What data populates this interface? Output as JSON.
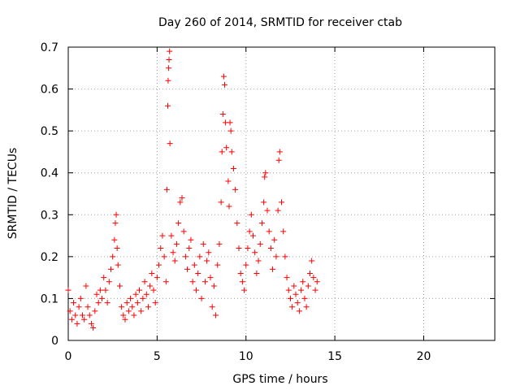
{
  "chart_data": {
    "type": "scatter",
    "title": "Day 260 of 2014, SRMTID for receiver ctab",
    "xlabel": "GPS time / hours",
    "ylabel": "SRMTID / TECUs",
    "xlim": [
      0,
      24
    ],
    "ylim": [
      0,
      0.7
    ],
    "xticks": [
      0,
      5,
      10,
      15,
      20
    ],
    "yticks": [
      0,
      0.1,
      0.2,
      0.3,
      0.4,
      0.5,
      0.6,
      0.7
    ],
    "xtick_labels": [
      "0",
      "5",
      "10",
      "15",
      "20"
    ],
    "ytick_labels": [
      "0",
      "0.1",
      "0.2",
      "0.3",
      "0.4",
      "0.5",
      "0.6",
      "0.7"
    ],
    "grid": true,
    "marker": "+",
    "series": [
      {
        "name": "ctab",
        "color": "#ff0000",
        "points": [
          [
            0.0,
            0.12
          ],
          [
            0.1,
            0.07
          ],
          [
            0.2,
            0.05
          ],
          [
            0.3,
            0.09
          ],
          [
            0.4,
            0.06
          ],
          [
            0.5,
            0.04
          ],
          [
            0.6,
            0.08
          ],
          [
            0.7,
            0.1
          ],
          [
            0.8,
            0.06
          ],
          [
            0.9,
            0.05
          ],
          [
            1.0,
            0.13
          ],
          [
            1.1,
            0.08
          ],
          [
            1.2,
            0.06
          ],
          [
            1.3,
            0.04
          ],
          [
            1.4,
            0.03
          ],
          [
            1.5,
            0.07
          ],
          [
            1.6,
            0.11
          ],
          [
            1.7,
            0.09
          ],
          [
            1.8,
            0.12
          ],
          [
            1.9,
            0.1
          ],
          [
            2.0,
            0.15
          ],
          [
            2.1,
            0.12
          ],
          [
            2.2,
            0.09
          ],
          [
            2.3,
            0.14
          ],
          [
            2.4,
            0.17
          ],
          [
            2.5,
            0.2
          ],
          [
            2.6,
            0.24
          ],
          [
            2.65,
            0.28
          ],
          [
            2.7,
            0.3
          ],
          [
            2.75,
            0.22
          ],
          [
            2.8,
            0.18
          ],
          [
            2.9,
            0.13
          ],
          [
            3.0,
            0.08
          ],
          [
            3.1,
            0.06
          ],
          [
            3.2,
            0.05
          ],
          [
            3.3,
            0.09
          ],
          [
            3.4,
            0.07
          ],
          [
            3.5,
            0.1
          ],
          [
            3.6,
            0.08
          ],
          [
            3.7,
            0.06
          ],
          [
            3.8,
            0.11
          ],
          [
            3.9,
            0.09
          ],
          [
            4.0,
            0.12
          ],
          [
            4.1,
            0.07
          ],
          [
            4.2,
            0.1
          ],
          [
            4.3,
            0.14
          ],
          [
            4.4,
            0.11
          ],
          [
            4.5,
            0.08
          ],
          [
            4.6,
            0.13
          ],
          [
            4.7,
            0.16
          ],
          [
            4.8,
            0.12
          ],
          [
            4.9,
            0.09
          ],
          [
            5.0,
            0.15
          ],
          [
            5.1,
            0.18
          ],
          [
            5.2,
            0.22
          ],
          [
            5.3,
            0.25
          ],
          [
            5.4,
            0.2
          ],
          [
            5.5,
            0.14
          ],
          [
            5.55,
            0.36
          ],
          [
            5.6,
            0.56
          ],
          [
            5.62,
            0.62
          ],
          [
            5.65,
            0.65
          ],
          [
            5.67,
            0.67
          ],
          [
            5.7,
            0.69
          ],
          [
            5.72,
            0.47
          ],
          [
            5.8,
            0.25
          ],
          [
            5.9,
            0.21
          ],
          [
            6.0,
            0.19
          ],
          [
            6.1,
            0.23
          ],
          [
            6.2,
            0.28
          ],
          [
            6.3,
            0.33
          ],
          [
            6.4,
            0.34
          ],
          [
            6.5,
            0.26
          ],
          [
            6.6,
            0.2
          ],
          [
            6.7,
            0.17
          ],
          [
            6.8,
            0.22
          ],
          [
            6.9,
            0.24
          ],
          [
            7.0,
            0.14
          ],
          [
            7.1,
            0.18
          ],
          [
            7.2,
            0.12
          ],
          [
            7.3,
            0.16
          ],
          [
            7.4,
            0.2
          ],
          [
            7.5,
            0.1
          ],
          [
            7.6,
            0.23
          ],
          [
            7.7,
            0.14
          ],
          [
            7.8,
            0.19
          ],
          [
            7.9,
            0.21
          ],
          [
            8.0,
            0.15
          ],
          [
            8.1,
            0.08
          ],
          [
            8.2,
            0.13
          ],
          [
            8.3,
            0.06
          ],
          [
            8.4,
            0.18
          ],
          [
            8.5,
            0.23
          ],
          [
            8.6,
            0.33
          ],
          [
            8.65,
            0.45
          ],
          [
            8.7,
            0.54
          ],
          [
            8.75,
            0.63
          ],
          [
            8.8,
            0.61
          ],
          [
            8.85,
            0.52
          ],
          [
            8.9,
            0.46
          ],
          [
            9.0,
            0.38
          ],
          [
            9.05,
            0.32
          ],
          [
            9.1,
            0.52
          ],
          [
            9.15,
            0.5
          ],
          [
            9.2,
            0.45
          ],
          [
            9.3,
            0.41
          ],
          [
            9.4,
            0.36
          ],
          [
            9.5,
            0.28
          ],
          [
            9.6,
            0.22
          ],
          [
            9.7,
            0.16
          ],
          [
            9.8,
            0.14
          ],
          [
            9.9,
            0.12
          ],
          [
            10.0,
            0.18
          ],
          [
            10.1,
            0.22
          ],
          [
            10.2,
            0.26
          ],
          [
            10.3,
            0.3
          ],
          [
            10.4,
            0.25
          ],
          [
            10.5,
            0.21
          ],
          [
            10.6,
            0.16
          ],
          [
            10.7,
            0.19
          ],
          [
            10.8,
            0.23
          ],
          [
            10.9,
            0.28
          ],
          [
            11.0,
            0.33
          ],
          [
            11.05,
            0.39
          ],
          [
            11.1,
            0.4
          ],
          [
            11.2,
            0.31
          ],
          [
            11.3,
            0.26
          ],
          [
            11.4,
            0.22
          ],
          [
            11.5,
            0.17
          ],
          [
            11.6,
            0.24
          ],
          [
            11.7,
            0.2
          ],
          [
            11.8,
            0.31
          ],
          [
            11.85,
            0.43
          ],
          [
            11.9,
            0.45
          ],
          [
            12.0,
            0.33
          ],
          [
            12.1,
            0.26
          ],
          [
            12.2,
            0.2
          ],
          [
            12.3,
            0.15
          ],
          [
            12.4,
            0.12
          ],
          [
            12.5,
            0.1
          ],
          [
            12.6,
            0.08
          ],
          [
            12.7,
            0.13
          ],
          [
            12.8,
            0.11
          ],
          [
            12.9,
            0.09
          ],
          [
            13.0,
            0.07
          ],
          [
            13.1,
            0.12
          ],
          [
            13.2,
            0.14
          ],
          [
            13.3,
            0.1
          ],
          [
            13.4,
            0.08
          ],
          [
            13.5,
            0.13
          ],
          [
            13.6,
            0.16
          ],
          [
            13.7,
            0.19
          ],
          [
            13.8,
            0.15
          ],
          [
            13.9,
            0.12
          ],
          [
            14.0,
            0.14
          ]
        ]
      }
    ]
  }
}
